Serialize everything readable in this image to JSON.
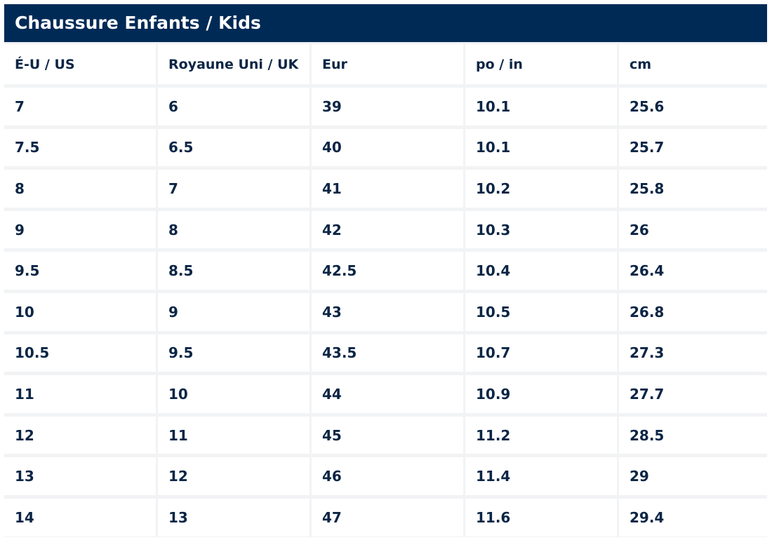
{
  "table": {
    "title": "Chaussure Enfants / Kids",
    "headers": [
      "É-U / US",
      "Royaune Uni / UK",
      "Eur",
      "po / in",
      "cm"
    ],
    "rows": [
      [
        "7",
        "6",
        "39",
        "10.1",
        "25.6"
      ],
      [
        "7.5",
        "6.5",
        "40",
        "10.1",
        "25.7"
      ],
      [
        "8",
        "7",
        "41",
        "10.2",
        "25.8"
      ],
      [
        "9",
        "8",
        "42",
        "10.3",
        "26"
      ],
      [
        "9.5",
        "8.5",
        "42.5",
        "10.4",
        "26.4"
      ],
      [
        "10",
        "9",
        "43",
        "10.5",
        "26.8"
      ],
      [
        "10.5",
        "9.5",
        "43.5",
        "10.7",
        "27.3"
      ],
      [
        "11",
        "10",
        "44",
        "10.9",
        "27.7"
      ],
      [
        "12",
        "11",
        "45",
        "11.2",
        "28.5"
      ],
      [
        "13",
        "12",
        "46",
        "11.4",
        "29"
      ],
      [
        "14",
        "13",
        "47",
        "11.6",
        "29.4"
      ]
    ]
  },
  "colors": {
    "title_background": "#002a56",
    "title_text": "#ffffff",
    "cell_text": "#0b2545",
    "cell_background": "#ffffff",
    "grid_gap": "#f2f3f5"
  }
}
